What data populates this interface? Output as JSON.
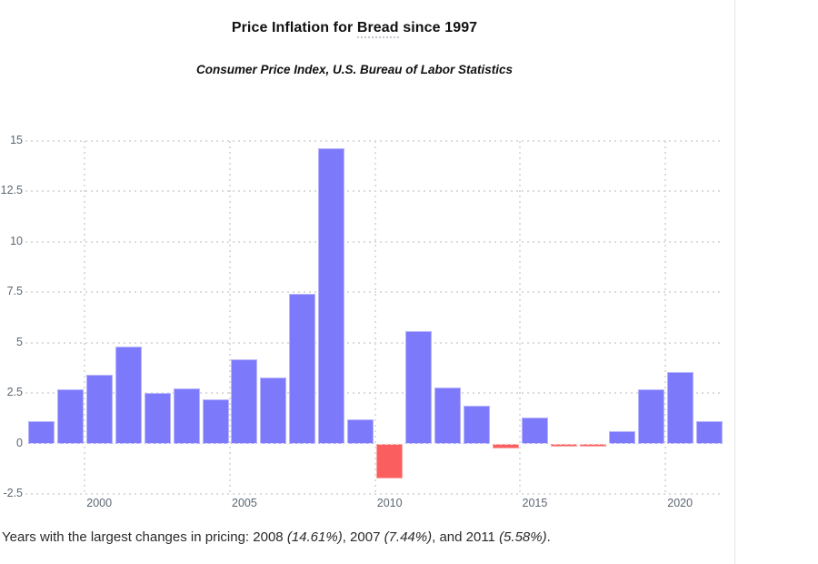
{
  "header": {
    "title": {
      "pre": "Price Inflation for ",
      "term": "Bread",
      "post": " since 1997"
    },
    "subtitle": "Consumer Price Index, U.S. Bureau of Labor Statistics"
  },
  "caption": {
    "lead": "Years with the largest changes in pricing: ",
    "year1": "2008 ",
    "pct1": "(14.61%)",
    "sep1": ", 2007 ",
    "pct2": "(7.44%)",
    "sep2": ", and 2011 ",
    "pct3": "(5.58%)",
    "end": "."
  },
  "chart_data": {
    "type": "bar",
    "title": "Price Inflation for Bread since 1997",
    "subtitle": "Consumer Price Index, U.S. Bureau of Labor Statistics",
    "xlabel": "",
    "ylabel": "",
    "x": [
      1998,
      1999,
      2000,
      2001,
      2002,
      2003,
      2004,
      2005,
      2006,
      2007,
      2008,
      2009,
      2010,
      2011,
      2012,
      2013,
      2014,
      2015,
      2016,
      2017,
      2018,
      2019,
      2020,
      2021
    ],
    "values": [
      1.1,
      2.7,
      3.4,
      4.8,
      2.5,
      2.75,
      2.2,
      4.2,
      3.3,
      7.44,
      14.61,
      1.2,
      -1.7,
      5.58,
      2.8,
      1.9,
      -0.23,
      1.3,
      -0.15,
      -0.15,
      0.6,
      2.7,
      3.55,
      1.1
    ],
    "highlights": {
      "2008": "14.61%",
      "2007": "7.44%",
      "2011": "5.58%"
    },
    "yticks": [
      15,
      12.5,
      10,
      7.5,
      5,
      2.5,
      0,
      -2.5
    ],
    "xticks": [
      2000,
      2005,
      2010,
      2015,
      2020
    ],
    "ylim": [
      -2.5,
      15
    ],
    "grid": "dotted",
    "legend": "none",
    "positive_color": "#7c79fa",
    "negative_color": "#fa5e5e",
    "gridline_color": "#dcdcdc",
    "tick_label_color": "#5b6673"
  }
}
